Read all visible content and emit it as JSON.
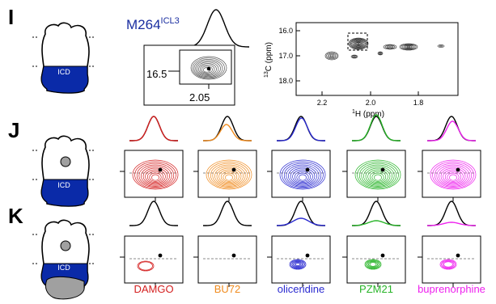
{
  "panels": {
    "I": {
      "letter": "I",
      "construct": "M264",
      "construct_sup": "ICL3",
      "domain_label": "ICD",
      "zoom_y_tick": "16.5",
      "zoom_x_tick": "2.05",
      "spectrum": {
        "ylabel_iso": "13",
        "ylabel_rest": "C (ppm)",
        "xlabel_iso": "1",
        "xlabel_rest": "H (ppm)",
        "y_ticks": [
          "16.0",
          "17.0",
          "18.0"
        ],
        "x_ticks": [
          "2.2",
          "2.0",
          "1.8"
        ]
      }
    },
    "J": {
      "letter": "J",
      "domain_label": "ICD"
    },
    "K": {
      "letter": "K",
      "domain_label": "ICD"
    }
  },
  "ligands": [
    {
      "name": "DAMGO",
      "color": "#d42020"
    },
    {
      "name": "BU72",
      "color": "#f08c20"
    },
    {
      "name": "oliceridine",
      "color": "#2a2ad0"
    },
    {
      "name": "PZM21",
      "color": "#28b428"
    },
    {
      "name": "buprenorphine",
      "color": "#ee22ee"
    }
  ],
  "colors": {
    "domain_fill": "#0a2aa8",
    "bound_grey": "#a0a0a0",
    "trace_black": "#000000"
  }
}
